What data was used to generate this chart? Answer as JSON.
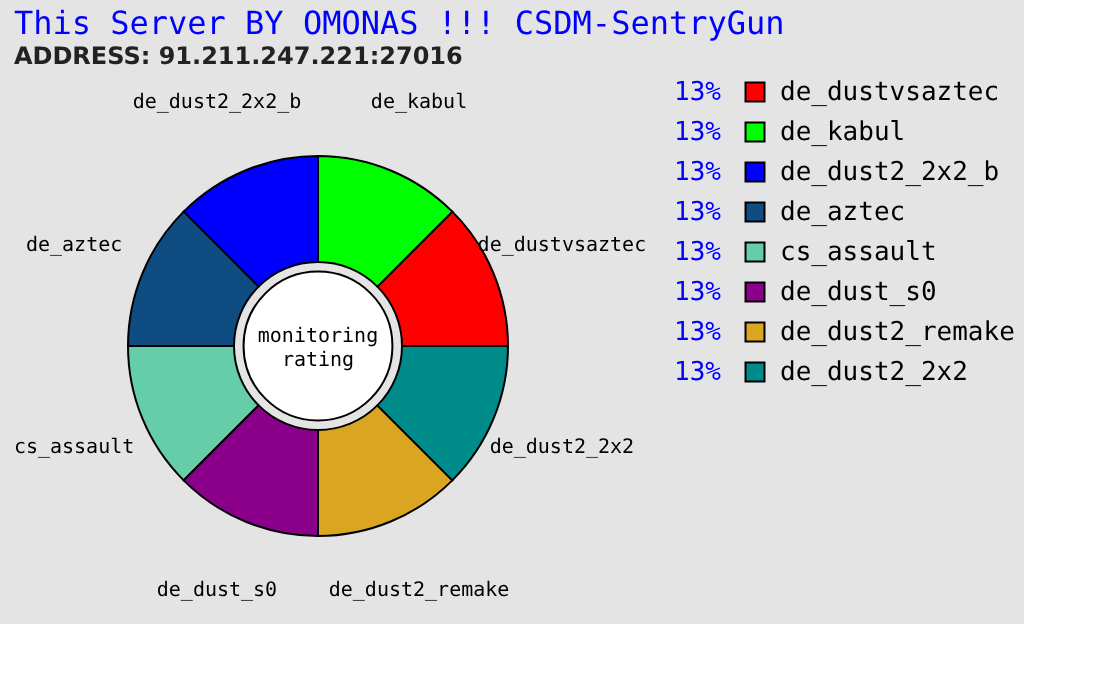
{
  "chart_data": {
    "type": "donut",
    "title": "This Server BY OMONAS !!! CSDM-SentryGun",
    "subtitle": "ADDRESS: 91.211.247.221:27016",
    "categories": [
      "de_dustvsaztec",
      "de_kabul",
      "de_dust2_2x2_b",
      "de_aztec",
      "cs_assault",
      "de_dust_s0",
      "de_dust2_remake",
      "de_dust2_2x2"
    ],
    "values": [
      13,
      13,
      13,
      13,
      13,
      13,
      13,
      13
    ],
    "value_labels": [
      "13%",
      "13%",
      "13%",
      "13%",
      "13%",
      "13%",
      "13%",
      "13%"
    ],
    "colors": [
      "#ff0000",
      "#00ff00",
      "#0000ff",
      "#0f4c81",
      "#66cdaa",
      "#8b008b",
      "#daa520",
      "#008b8b"
    ],
    "legend": "right",
    "annotations": [
      "monitoring rating"
    ]
  }
}
